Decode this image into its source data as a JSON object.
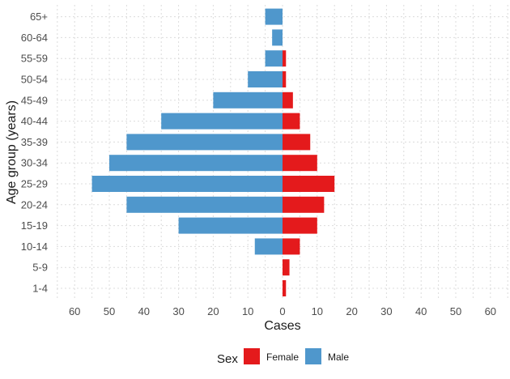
{
  "chart_data": {
    "type": "bar",
    "orientation": "horizontal-pyramid",
    "categories": [
      "1-4",
      "5-9",
      "10-14",
      "15-19",
      "20-24",
      "25-29",
      "30-34",
      "35-39",
      "40-44",
      "45-49",
      "50-54",
      "55-59",
      "60-64",
      "65+"
    ],
    "series": [
      {
        "name": "Female",
        "color": "#e41a1c",
        "values": [
          1,
          2,
          5,
          10,
          12,
          15,
          10,
          8,
          5,
          3,
          1,
          1,
          0,
          0
        ]
      },
      {
        "name": "Male",
        "color": "#4f97cc",
        "values": [
          0,
          0,
          8,
          30,
          45,
          55,
          50,
          45,
          35,
          20,
          10,
          5,
          3,
          5
        ]
      }
    ],
    "xlabel": "Cases",
    "ylabel": "Age group (years)",
    "xlim": [
      -65,
      65
    ],
    "xticks": [
      -60,
      -50,
      -40,
      -30,
      -20,
      -10,
      0,
      10,
      20,
      30,
      40,
      50,
      60
    ],
    "xtick_labels": [
      "60",
      "50",
      "40",
      "30",
      "20",
      "10",
      "0",
      "10",
      "20",
      "30",
      "40",
      "50",
      "60"
    ],
    "grid": true,
    "legend": {
      "title": "Sex",
      "position": "bottom",
      "entries": [
        "Female",
        "Male"
      ]
    }
  }
}
